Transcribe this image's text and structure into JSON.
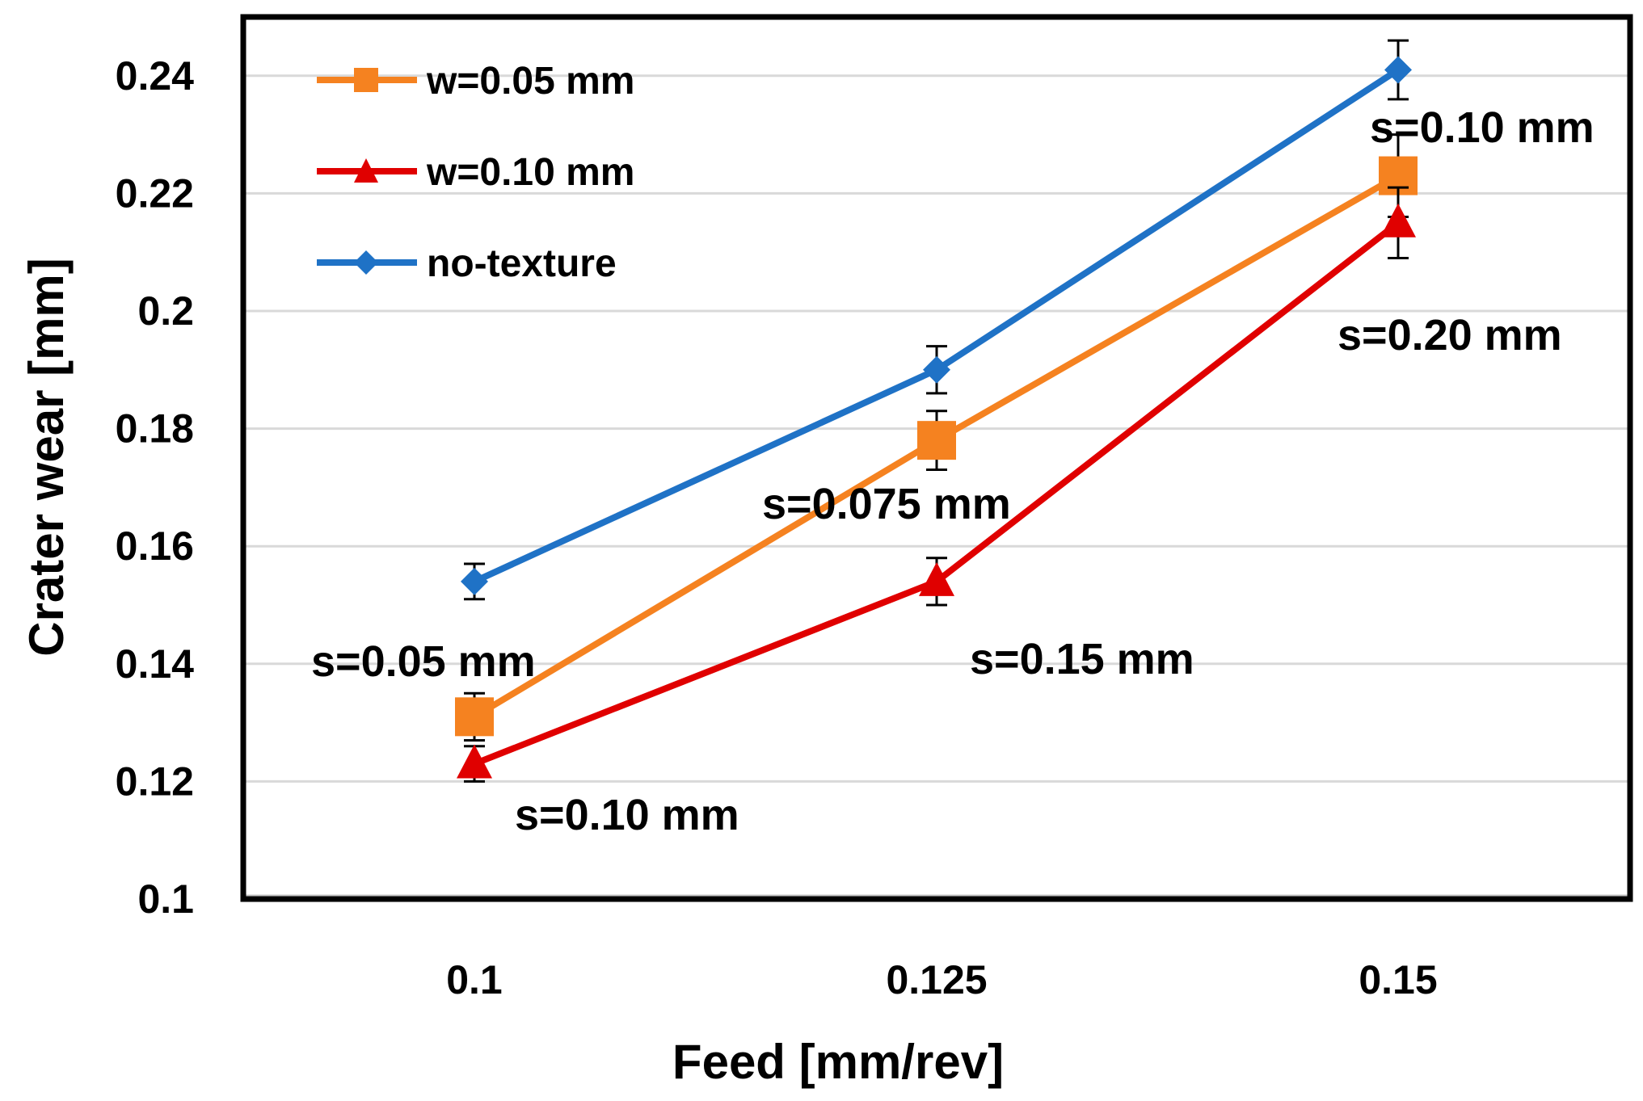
{
  "chart_data": {
    "type": "line",
    "title": "",
    "xlabel": "Feed [mm/rev]",
    "ylabel": "Crater wear [mm]",
    "categories": [
      "0.1",
      "0.125",
      "0.15"
    ],
    "ylim": [
      0.1,
      0.25
    ],
    "yticks": [
      "0.1",
      "0.12",
      "0.14",
      "0.16",
      "0.18",
      "0.2",
      "0.22",
      "0.24"
    ],
    "grid": true,
    "legend_position": "top-left",
    "series": [
      {
        "name": "w=0.05 mm",
        "color": "#F58220",
        "marker": "square",
        "values": [
          0.131,
          0.178,
          0.223
        ],
        "errors": [
          0.004,
          0.005,
          0.007
        ]
      },
      {
        "name": "w=0.10 mm",
        "color": "#E00000",
        "marker": "triangle",
        "values": [
          0.123,
          0.154,
          0.215
        ],
        "errors": [
          0.003,
          0.004,
          0.006
        ]
      },
      {
        "name": "no-texture",
        "color": "#1F72C6",
        "marker": "diamond",
        "values": [
          0.154,
          0.19,
          0.241
        ],
        "errors": [
          0.003,
          0.004,
          0.005
        ]
      }
    ],
    "annotations": [
      "s=0.05 mm",
      "s=0.10 mm",
      "s=0.075 mm",
      "s=0.15 mm",
      "s=0.10 mm",
      "s=0.20 mm"
    ]
  }
}
